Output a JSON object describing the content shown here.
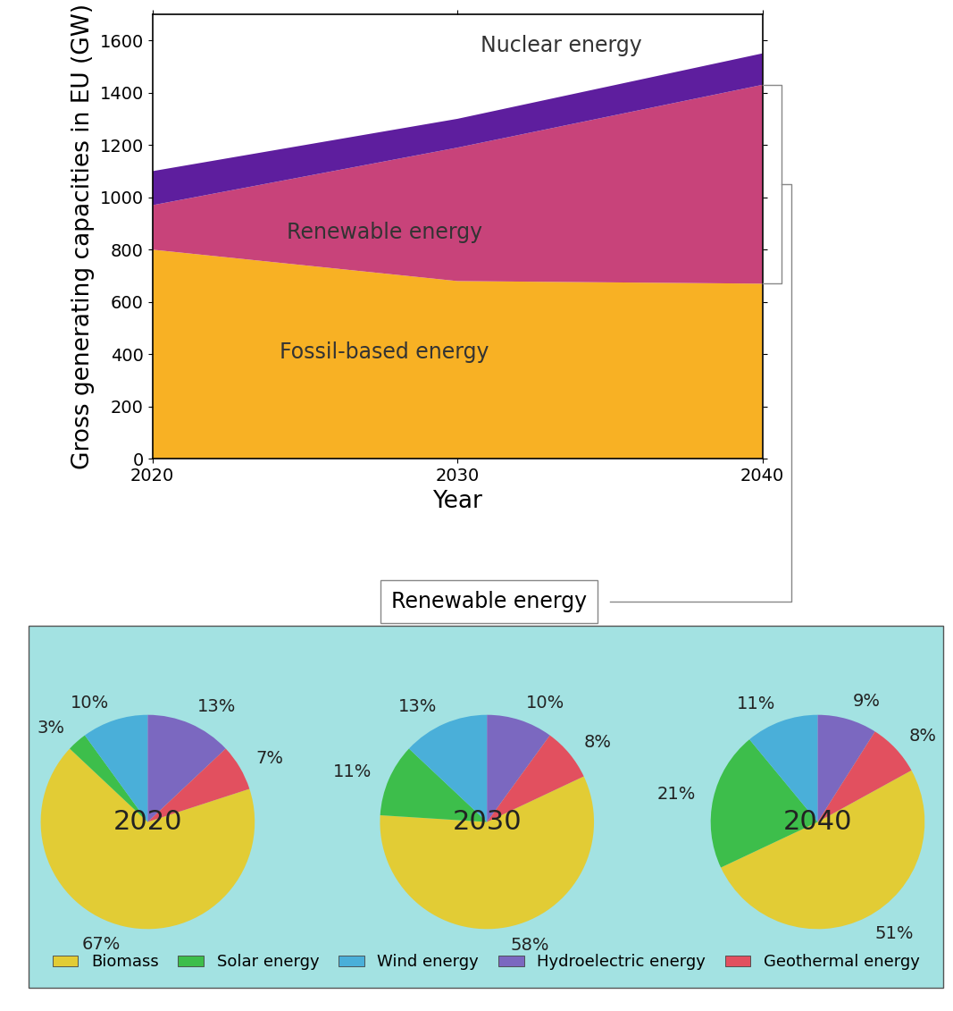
{
  "chart_data": [
    {
      "type": "stacked_area",
      "x": [
        2020,
        2030,
        2040
      ],
      "xlabel": "Year",
      "ylabel": "Gross generating capacities in EU (GW)",
      "xlim": [
        2020,
        2040
      ],
      "xticks": [
        2020,
        2030,
        2040
      ],
      "ylim": [
        0,
        1700
      ],
      "yticks": [
        0,
        200,
        400,
        600,
        800,
        1000,
        1200,
        1400,
        1600
      ],
      "stacked": true,
      "series": [
        {
          "name": "Fossil-based energy",
          "color": "#F8B124",
          "values": [
            800,
            680,
            670
          ]
        },
        {
          "name": "Renewable energy",
          "color": "#C8437A",
          "values": [
            170,
            510,
            760
          ]
        },
        {
          "name": "Nuclear energy",
          "color": "#5E1E9E",
          "values": [
            130,
            110,
            120
          ]
        }
      ]
    },
    {
      "type": "pie",
      "title": "2020",
      "categories": [
        "Biomass",
        "Solar energy",
        "Wind energy",
        "Hydroelectric energy",
        "Geothermal energy"
      ],
      "values": [
        67,
        3,
        10,
        13,
        7
      ],
      "value_labels": [
        "67%",
        "3%",
        "10%",
        "13%",
        "7%"
      ],
      "colors": [
        "#E2CC35",
        "#3DBE4B",
        "#4AAFD9",
        "#7B68C0",
        "#E2505F"
      ],
      "legend": "lower center"
    },
    {
      "type": "pie",
      "title": "2030",
      "categories": [
        "Biomass",
        "Solar energy",
        "Wind energy",
        "Hydroelectric energy",
        "Geothermal energy"
      ],
      "values": [
        58,
        11,
        13,
        10,
        8
      ],
      "value_labels": [
        "58%",
        "11%",
        "13%",
        "10%",
        "8%"
      ],
      "colors": [
        "#E2CC35",
        "#3DBE4B",
        "#4AAFD9",
        "#7B68C0",
        "#E2505F"
      ]
    },
    {
      "type": "pie",
      "title": "2040",
      "categories": [
        "Biomass",
        "Solar energy",
        "Wind energy",
        "Hydroelectric energy",
        "Geothermal energy"
      ],
      "values": [
        51,
        21,
        11,
        9,
        8
      ],
      "value_labels": [
        "51%",
        "21%",
        "11%",
        "9%",
        "8%"
      ],
      "colors": [
        "#E2CC35",
        "#3DBE4B",
        "#4AAFD9",
        "#7B68C0",
        "#E2505F"
      ]
    }
  ],
  "callout": "Renewable energy"
}
